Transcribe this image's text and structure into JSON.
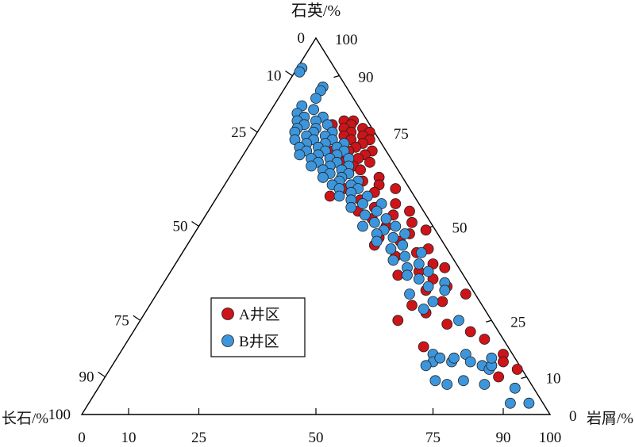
{
  "chart_data": {
    "type": "scatter",
    "subtype": "ternary",
    "axes": {
      "top": {
        "label": "石英/%",
        "tick_labels_left": [
          "0",
          "10",
          "25",
          "50",
          "75",
          "90",
          "100"
        ],
        "tick_labels_right": [
          "100",
          "90",
          "75",
          "50",
          "25",
          "10",
          "0"
        ]
      },
      "bottom_left": {
        "label": "长石/%"
      },
      "bottom_right": {
        "label": "岩屑/%",
        "tick_labels_bottom": [
          "0",
          "10",
          "25",
          "50",
          "75",
          "90",
          "100"
        ]
      }
    },
    "colors": {
      "A": "#cc1419",
      "B": "#3d96dc"
    },
    "legend": {
      "placement": "lower-left inside",
      "entries": [
        {
          "label": "A井区",
          "color": "#cc1419"
        },
        {
          "label": "B井区",
          "color": "#3d96dc"
        }
      ]
    },
    "series": [
      {
        "name": "A井区",
        "color": "#cc1419",
        "points": [
          [
            78,
            5,
            17
          ],
          [
            78,
            3,
            19
          ],
          [
            77,
            8,
            15
          ],
          [
            77,
            4,
            19
          ],
          [
            76,
            6,
            18
          ],
          [
            76,
            2,
            22
          ],
          [
            75,
            9,
            16
          ],
          [
            75,
            5,
            20
          ],
          [
            75,
            1,
            24
          ],
          [
            74,
            7,
            19
          ],
          [
            74,
            3,
            23
          ],
          [
            73,
            10,
            17
          ],
          [
            73,
            6,
            21
          ],
          [
            73,
            2,
            25
          ],
          [
            72,
            8,
            20
          ],
          [
            72,
            4,
            24
          ],
          [
            71,
            10,
            19
          ],
          [
            71,
            6,
            23
          ],
          [
            70,
            12,
            18
          ],
          [
            70,
            8,
            22
          ],
          [
            70,
            3,
            27
          ],
          [
            69,
            10,
            21
          ],
          [
            69,
            5,
            26
          ],
          [
            68,
            13,
            19
          ],
          [
            68,
            7,
            25
          ],
          [
            67,
            11,
            22
          ],
          [
            67,
            5,
            28
          ],
          [
            66,
            9,
            25
          ],
          [
            66,
            14,
            20
          ],
          [
            65,
            8,
            27
          ],
          [
            64,
            11,
            25
          ],
          [
            63,
            17,
            20
          ],
          [
            63,
            5,
            32
          ],
          [
            62,
            9,
            29
          ],
          [
            61,
            6,
            33
          ],
          [
            60,
            14,
            26
          ],
          [
            60,
            3,
            37
          ],
          [
            59,
            8,
            33
          ],
          [
            58,
            18,
            24
          ],
          [
            57,
            12,
            31
          ],
          [
            56,
            5,
            39
          ],
          [
            55,
            10,
            35
          ],
          [
            54,
            14,
            32
          ],
          [
            54,
            3,
            43
          ],
          [
            53,
            7,
            40
          ],
          [
            52,
            12,
            36
          ],
          [
            51,
            4,
            45
          ],
          [
            50,
            10,
            40
          ],
          [
            49,
            2,
            49
          ],
          [
            48,
            6,
            46
          ],
          [
            47,
            13,
            40
          ],
          [
            46,
            9,
            45
          ],
          [
            45,
            15,
            40
          ],
          [
            44,
            4,
            52
          ],
          [
            43,
            7,
            50
          ],
          [
            42,
            12,
            46
          ],
          [
            40,
            5,
            55
          ],
          [
            39,
            3,
            58
          ],
          [
            38,
            9,
            53
          ],
          [
            37,
            14,
            49
          ],
          [
            36,
            7,
            57
          ],
          [
            34,
            5,
            61
          ],
          [
            33,
            10,
            57
          ],
          [
            32,
            2,
            66
          ],
          [
            30,
            8,
            62
          ],
          [
            29,
            15,
            56
          ],
          [
            27,
            13,
            60
          ],
          [
            25,
            20,
            55
          ],
          [
            24,
            10,
            66
          ],
          [
            22,
            6,
            72
          ],
          [
            20,
            4,
            76
          ],
          [
            18,
            18,
            64
          ],
          [
            16,
            2,
            82
          ],
          [
            14,
            3,
            83
          ],
          [
            13,
            6,
            81
          ],
          [
            12,
            1,
            87
          ],
          [
            10,
            6,
            84
          ]
        ]
      },
      {
        "name": "B井区",
        "color": "#3d96dc",
        "points": [
          [
            92,
            7,
            1
          ],
          [
            91,
            8,
            1
          ],
          [
            87,
            5,
            8
          ],
          [
            86,
            6,
            8
          ],
          [
            84,
            8,
            8
          ],
          [
            82,
            12,
            6
          ],
          [
            81,
            10,
            9
          ],
          [
            80,
            14,
            6
          ],
          [
            79,
            13,
            8
          ],
          [
            79,
            9,
            12
          ],
          [
            78,
            15,
            7
          ],
          [
            78,
            11,
            11
          ],
          [
            77,
            14,
            9
          ],
          [
            77,
            9,
            14
          ],
          [
            76,
            16,
            8
          ],
          [
            76,
            12,
            12
          ],
          [
            75,
            17,
            8
          ],
          [
            75,
            13,
            12
          ],
          [
            75,
            9,
            16
          ],
          [
            74,
            15,
            11
          ],
          [
            74,
            11,
            15
          ],
          [
            73,
            18,
            9
          ],
          [
            73,
            14,
            13
          ],
          [
            73,
            10,
            17
          ],
          [
            72,
            16,
            12
          ],
          [
            72,
            12,
            16
          ],
          [
            72,
            8,
            20
          ],
          [
            71,
            18,
            11
          ],
          [
            71,
            14,
            15
          ],
          [
            71,
            10,
            19
          ],
          [
            70,
            17,
            13
          ],
          [
            70,
            13,
            17
          ],
          [
            70,
            9,
            21
          ],
          [
            69,
            19,
            12
          ],
          [
            69,
            15,
            16
          ],
          [
            69,
            11,
            20
          ],
          [
            68,
            17,
            15
          ],
          [
            68,
            13,
            19
          ],
          [
            68,
            9,
            23
          ],
          [
            67,
            16,
            17
          ],
          [
            67,
            12,
            21
          ],
          [
            66,
            18,
            16
          ],
          [
            66,
            14,
            20
          ],
          [
            66,
            10,
            24
          ],
          [
            65,
            16,
            19
          ],
          [
            65,
            12,
            23
          ],
          [
            64,
            15,
            21
          ],
          [
            64,
            11,
            25
          ],
          [
            63,
            17,
            20
          ],
          [
            63,
            13,
            24
          ],
          [
            62,
            14,
            24
          ],
          [
            62,
            10,
            28
          ],
          [
            61,
            16,
            23
          ],
          [
            61,
            12,
            27
          ],
          [
            60,
            15,
            25
          ],
          [
            60,
            11,
            29
          ],
          [
            59,
            13,
            28
          ],
          [
            58,
            16,
            26
          ],
          [
            58,
            10,
            32
          ],
          [
            57,
            14,
            29
          ],
          [
            56,
            12,
            32
          ],
          [
            56,
            8,
            36
          ],
          [
            55,
            15,
            30
          ],
          [
            54,
            10,
            36
          ],
          [
            53,
            13,
            34
          ],
          [
            52,
            9,
            39
          ],
          [
            51,
            12,
            37
          ],
          [
            50,
            15,
            35
          ],
          [
            50,
            8,
            42
          ],
          [
            49,
            11,
            40
          ],
          [
            48,
            13,
            39
          ],
          [
            48,
            7,
            45
          ],
          [
            47,
            10,
            43
          ],
          [
            46,
            14,
            40
          ],
          [
            45,
            9,
            46
          ],
          [
            44,
            12,
            44
          ],
          [
            43,
            6,
            51
          ],
          [
            42,
            10,
            48
          ],
          [
            41,
            13,
            46
          ],
          [
            40,
            8,
            52
          ],
          [
            39,
            11,
            50
          ],
          [
            38,
            7,
            55
          ],
          [
            37,
            12,
            51
          ],
          [
            36,
            10,
            54
          ],
          [
            35,
            5,
            60
          ],
          [
            34,
            9,
            57
          ],
          [
            33,
            6,
            61
          ],
          [
            32,
            14,
            54
          ],
          [
            30,
            10,
            60
          ],
          [
            28,
            13,
            59
          ],
          [
            25,
            7,
            68
          ],
          [
            16,
            17,
            67
          ],
          [
            14,
            18,
            68
          ],
          [
            13,
            20,
            67
          ],
          [
            15,
            16,
            69
          ],
          [
            14,
            14,
            72
          ],
          [
            15,
            13,
            72
          ],
          [
            16,
            10,
            74
          ],
          [
            14,
            10,
            76
          ],
          [
            13,
            8,
            79
          ],
          [
            12,
            7,
            81
          ],
          [
            13,
            6,
            81
          ],
          [
            15,
            5,
            80
          ],
          [
            9,
            20,
            71
          ],
          [
            8,
            18,
            74
          ],
          [
            9,
            14,
            77
          ],
          [
            8,
            10,
            82
          ],
          [
            7,
            4,
            89
          ],
          [
            3,
            3,
            94
          ],
          [
            3,
            7,
            90
          ]
        ]
      }
    ]
  }
}
